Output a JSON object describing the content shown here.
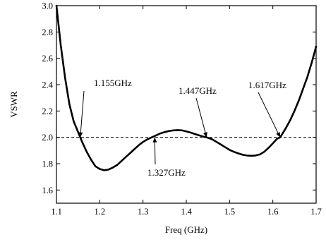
{
  "chart_data": {
    "type": "line",
    "title": "",
    "xlabel": "Freq (GHz)",
    "ylabel": "VSWR",
    "xlim": [
      1.1,
      1.7
    ],
    "ylim": [
      1.5,
      3.0
    ],
    "x_ticks": [
      "1.1",
      "1.2",
      "1.3",
      "1.4",
      "1.5",
      "1.6",
      "1.7"
    ],
    "y_ticks": [
      "1.6",
      "1.8",
      "2.0",
      "2.2",
      "2.4",
      "2.6",
      "2.8",
      "3.0"
    ],
    "grid": false,
    "legend": "none",
    "series": [
      {
        "color": "#000000",
        "x": [
          1.1,
          1.11,
          1.12,
          1.13,
          1.14,
          1.15,
          1.155,
          1.16,
          1.17,
          1.18,
          1.19,
          1.2,
          1.21,
          1.22,
          1.23,
          1.24,
          1.25,
          1.26,
          1.27,
          1.28,
          1.29,
          1.3,
          1.31,
          1.32,
          1.327,
          1.34,
          1.35,
          1.36,
          1.37,
          1.38,
          1.39,
          1.4,
          1.41,
          1.42,
          1.43,
          1.44,
          1.447,
          1.46,
          1.47,
          1.48,
          1.49,
          1.5,
          1.51,
          1.52,
          1.53,
          1.54,
          1.55,
          1.56,
          1.57,
          1.58,
          1.59,
          1.6,
          1.61,
          1.617,
          1.63,
          1.64,
          1.65,
          1.66,
          1.67,
          1.68,
          1.69,
          1.7
        ],
        "y": [
          3.0,
          2.7,
          2.45,
          2.25,
          2.12,
          2.04,
          2.0,
          1.96,
          1.89,
          1.83,
          1.78,
          1.76,
          1.75,
          1.755,
          1.77,
          1.79,
          1.82,
          1.85,
          1.88,
          1.91,
          1.94,
          1.965,
          1.985,
          2.0,
          2.01,
          2.03,
          2.04,
          2.048,
          2.053,
          2.055,
          2.053,
          2.045,
          2.036,
          2.025,
          2.015,
          2.005,
          2.0,
          1.985,
          1.965,
          1.945,
          1.925,
          1.905,
          1.89,
          1.878,
          1.868,
          1.862,
          1.86,
          1.862,
          1.87,
          1.89,
          1.92,
          1.955,
          1.99,
          2.0,
          2.07,
          2.13,
          2.2,
          2.28,
          2.37,
          2.46,
          2.57,
          2.69
        ]
      }
    ],
    "reference_line": {
      "y": 2.0,
      "style": "dashed"
    },
    "annotations": [
      {
        "text": "1.155GHz",
        "x": 1.155,
        "y": 2.0
      },
      {
        "text": "1.327GHz",
        "x": 1.327,
        "y": 2.0
      },
      {
        "text": "1.447GHz",
        "x": 1.447,
        "y": 2.0
      },
      {
        "text": "1.617GHz",
        "x": 1.617,
        "y": 2.0
      }
    ]
  }
}
